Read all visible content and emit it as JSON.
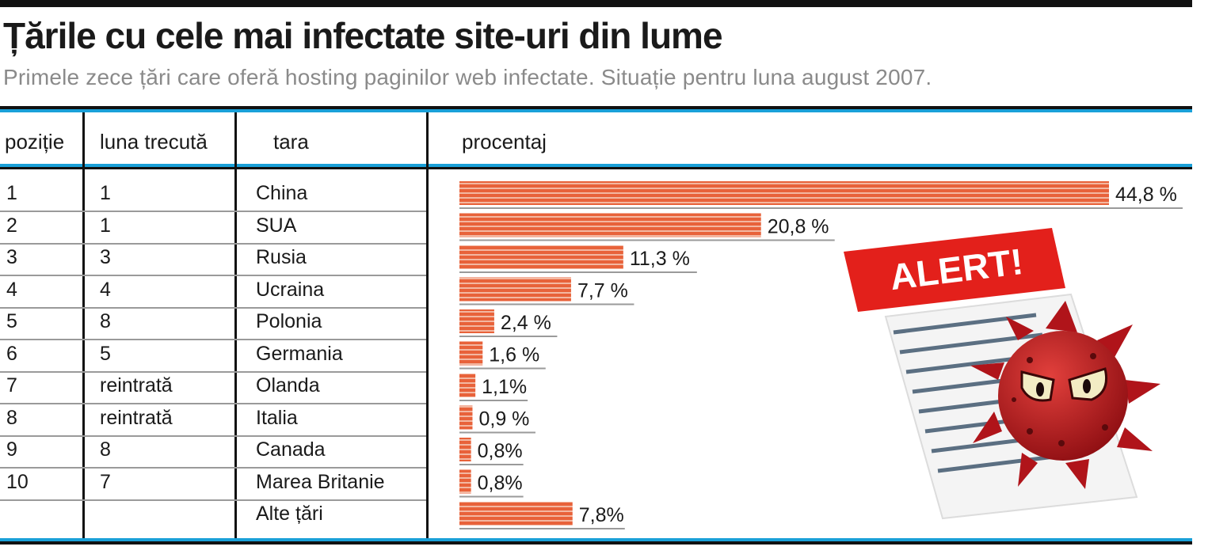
{
  "title": "Țările cu cele mai infectate site-uri din lume",
  "subtitle": "Primele zece țări care oferă hosting paginilor web infectate. Situație pentru luna august 2007.",
  "table": {
    "headers": {
      "pozitie": "poziție",
      "luna": "luna trecută",
      "tara": "tara",
      "procentaj": "procentaj"
    },
    "rows": [
      {
        "pozitie": "1",
        "luna": "1",
        "tara": "China"
      },
      {
        "pozitie": "2",
        "luna": "1",
        "tara": "SUA"
      },
      {
        "pozitie": "3",
        "luna": "3",
        "tara": "Rusia"
      },
      {
        "pozitie": "4",
        "luna": "4",
        "tara": "Ucraina"
      },
      {
        "pozitie": "5",
        "luna": "8",
        "tara": "Polonia"
      },
      {
        "pozitie": "6",
        "luna": "5",
        "tara": "Germania"
      },
      {
        "pozitie": "7",
        "luna": "reintrată",
        "tara": "Olanda"
      },
      {
        "pozitie": "8",
        "luna": "reintrată",
        "tara": "Italia"
      },
      {
        "pozitie": "9",
        "luna": "8",
        "tara": "Canada"
      },
      {
        "pozitie": "10",
        "luna": "7",
        "tara": "Marea Britanie"
      },
      {
        "pozitie": "",
        "luna": "",
        "tara": "Alte țări"
      }
    ]
  },
  "chart_data": {
    "type": "bar",
    "orientation": "horizontal",
    "categories": [
      "China",
      "SUA",
      "Rusia",
      "Ucraina",
      "Polonia",
      "Germania",
      "Olanda",
      "Italia",
      "Canada",
      "Marea Britanie",
      "Alte țări"
    ],
    "values": [
      44.8,
      20.8,
      11.3,
      7.7,
      2.4,
      1.6,
      1.1,
      0.9,
      0.8,
      0.8,
      7.8
    ],
    "labels": [
      "44,8 %",
      "20,8 %",
      "11,3 %",
      "7,7 %",
      "2,4 %",
      "1,6 %",
      "1,1%",
      "0,9 %",
      "0,8%",
      "0,8%",
      "7,8%"
    ],
    "xlabel": "procentaj",
    "unit": "%",
    "bar_color": "#e8623a"
  },
  "illustration": {
    "badge_text": "ALERT!",
    "badge_color": "#e3201b",
    "virus_color": "#c4161c"
  },
  "colors": {
    "accent_line": "#1aa0d8",
    "dark_line": "#111111"
  }
}
